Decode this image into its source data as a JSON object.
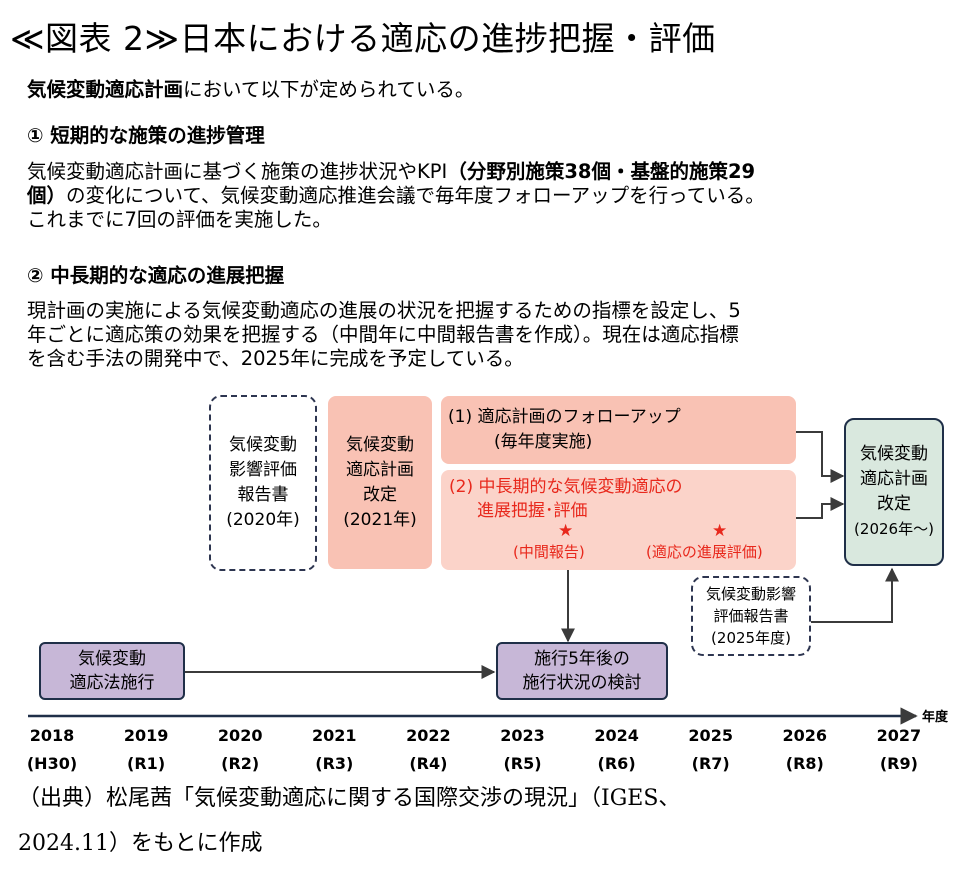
{
  "title": "≪図表 2≫日本における適応の進捗把握・評価",
  "intro": {
    "bold": "気候変動適応計画",
    "rest": "において以下が定められている。"
  },
  "section1": {
    "heading": "①  短期的な施策の進捗管理",
    "line1_a": "気候変動適応計画に基づく施策の進捗状況やKPI",
    "line1_b": "（分野別施策38個・基盤的施策29",
    "line2_a": "個）",
    "line2_b": "の変化について、気候変動適応推進会議で毎年度フォローアップを行っている。",
    "line3": "これまでに7回の評価を実施した。"
  },
  "section2": {
    "heading": "②  中長期的な適応の進展把握",
    "line1": "現計画の実施による気候変動適応の進展の状況を把握するための指標を設定し、5",
    "line2": "年ごとに適応策の効果を把握する（中間年に中間報告書を作成）。現在は適応指標",
    "line3": "を含む手法の開発中で、2025年に完成を予定している。"
  },
  "diagram": {
    "impact2020": {
      "line1": "気候変動",
      "line2": "影響評価",
      "line3": "報告書",
      "line4": "(2020年)"
    },
    "revision2021": {
      "line1": "気候変動",
      "line2": "適応計画",
      "line3": "改定",
      "line4": "(2021年)"
    },
    "followup": {
      "line1": "(1) 適応計画のフォローアップ",
      "line2": "(毎年度実施)"
    },
    "midlong": {
      "line1": "(2) 中長期的な気候変動適応の",
      "line2": "進展把握･評価",
      "star": "★",
      "mid_label": "(中間報告)",
      "eval_label": "(適応の進展評価)"
    },
    "revision2026": {
      "line1": "気候変動",
      "line2": "適応計画",
      "line3": "改定",
      "line4": "(2026年～)"
    },
    "impact2025": {
      "line1": "気候変動影響",
      "line2": "評価報告書",
      "line3": "(2025年度)"
    },
    "law": {
      "line1": "気候変動",
      "line2": "適応法施行"
    },
    "review": {
      "line1": "施行5年後の",
      "line2": "施行状況の検討"
    },
    "axis_label": "年度",
    "years": [
      {
        "y": "2018",
        "era": "(H30)"
      },
      {
        "y": "2019",
        "era": "(R1)"
      },
      {
        "y": "2020",
        "era": "(R2)"
      },
      {
        "y": "2021",
        "era": "(R3)"
      },
      {
        "y": "2022",
        "era": "(R4)"
      },
      {
        "y": "2023",
        "era": "(R5)"
      },
      {
        "y": "2024",
        "era": "(R6)"
      },
      {
        "y": "2025",
        "era": "(R7)"
      },
      {
        "y": "2026",
        "era": "(R8)"
      },
      {
        "y": "2027",
        "era": "(R9)"
      }
    ],
    "colors": {
      "red": "#e8281c",
      "pink": "#f9c2b4",
      "purple": "#c7b7d7",
      "green": "#d9e8de",
      "navy": "#1f2f48"
    }
  },
  "source": {
    "line1": "（出典）松尾茜「気候変動適応に関する国際交渉の現況」（IGES、",
    "line2": "2024.11）をもとに作成"
  }
}
